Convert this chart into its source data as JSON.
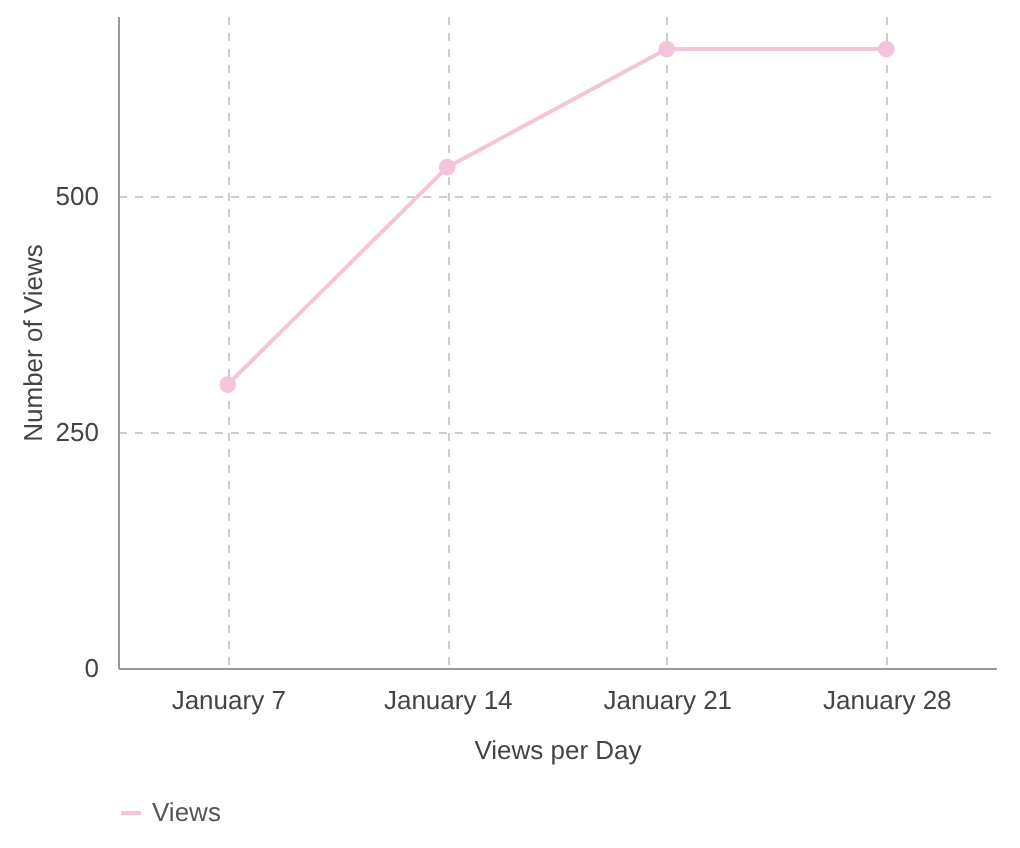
{
  "chart_data": {
    "type": "line",
    "xlabel": "Views per Day",
    "ylabel": "Number of Views",
    "categories": [
      "January 7",
      "January 14",
      "January 21",
      "January 28"
    ],
    "series": [
      {
        "name": "Views",
        "color": "#f4c4da",
        "values": [
          300,
          530,
          655,
          655
        ]
      }
    ],
    "ylim": [
      0,
      690
    ],
    "yticks": [
      0,
      250,
      500
    ],
    "grid": true,
    "legend": "bottom",
    "marker": "circle",
    "line_style": "solid"
  }
}
